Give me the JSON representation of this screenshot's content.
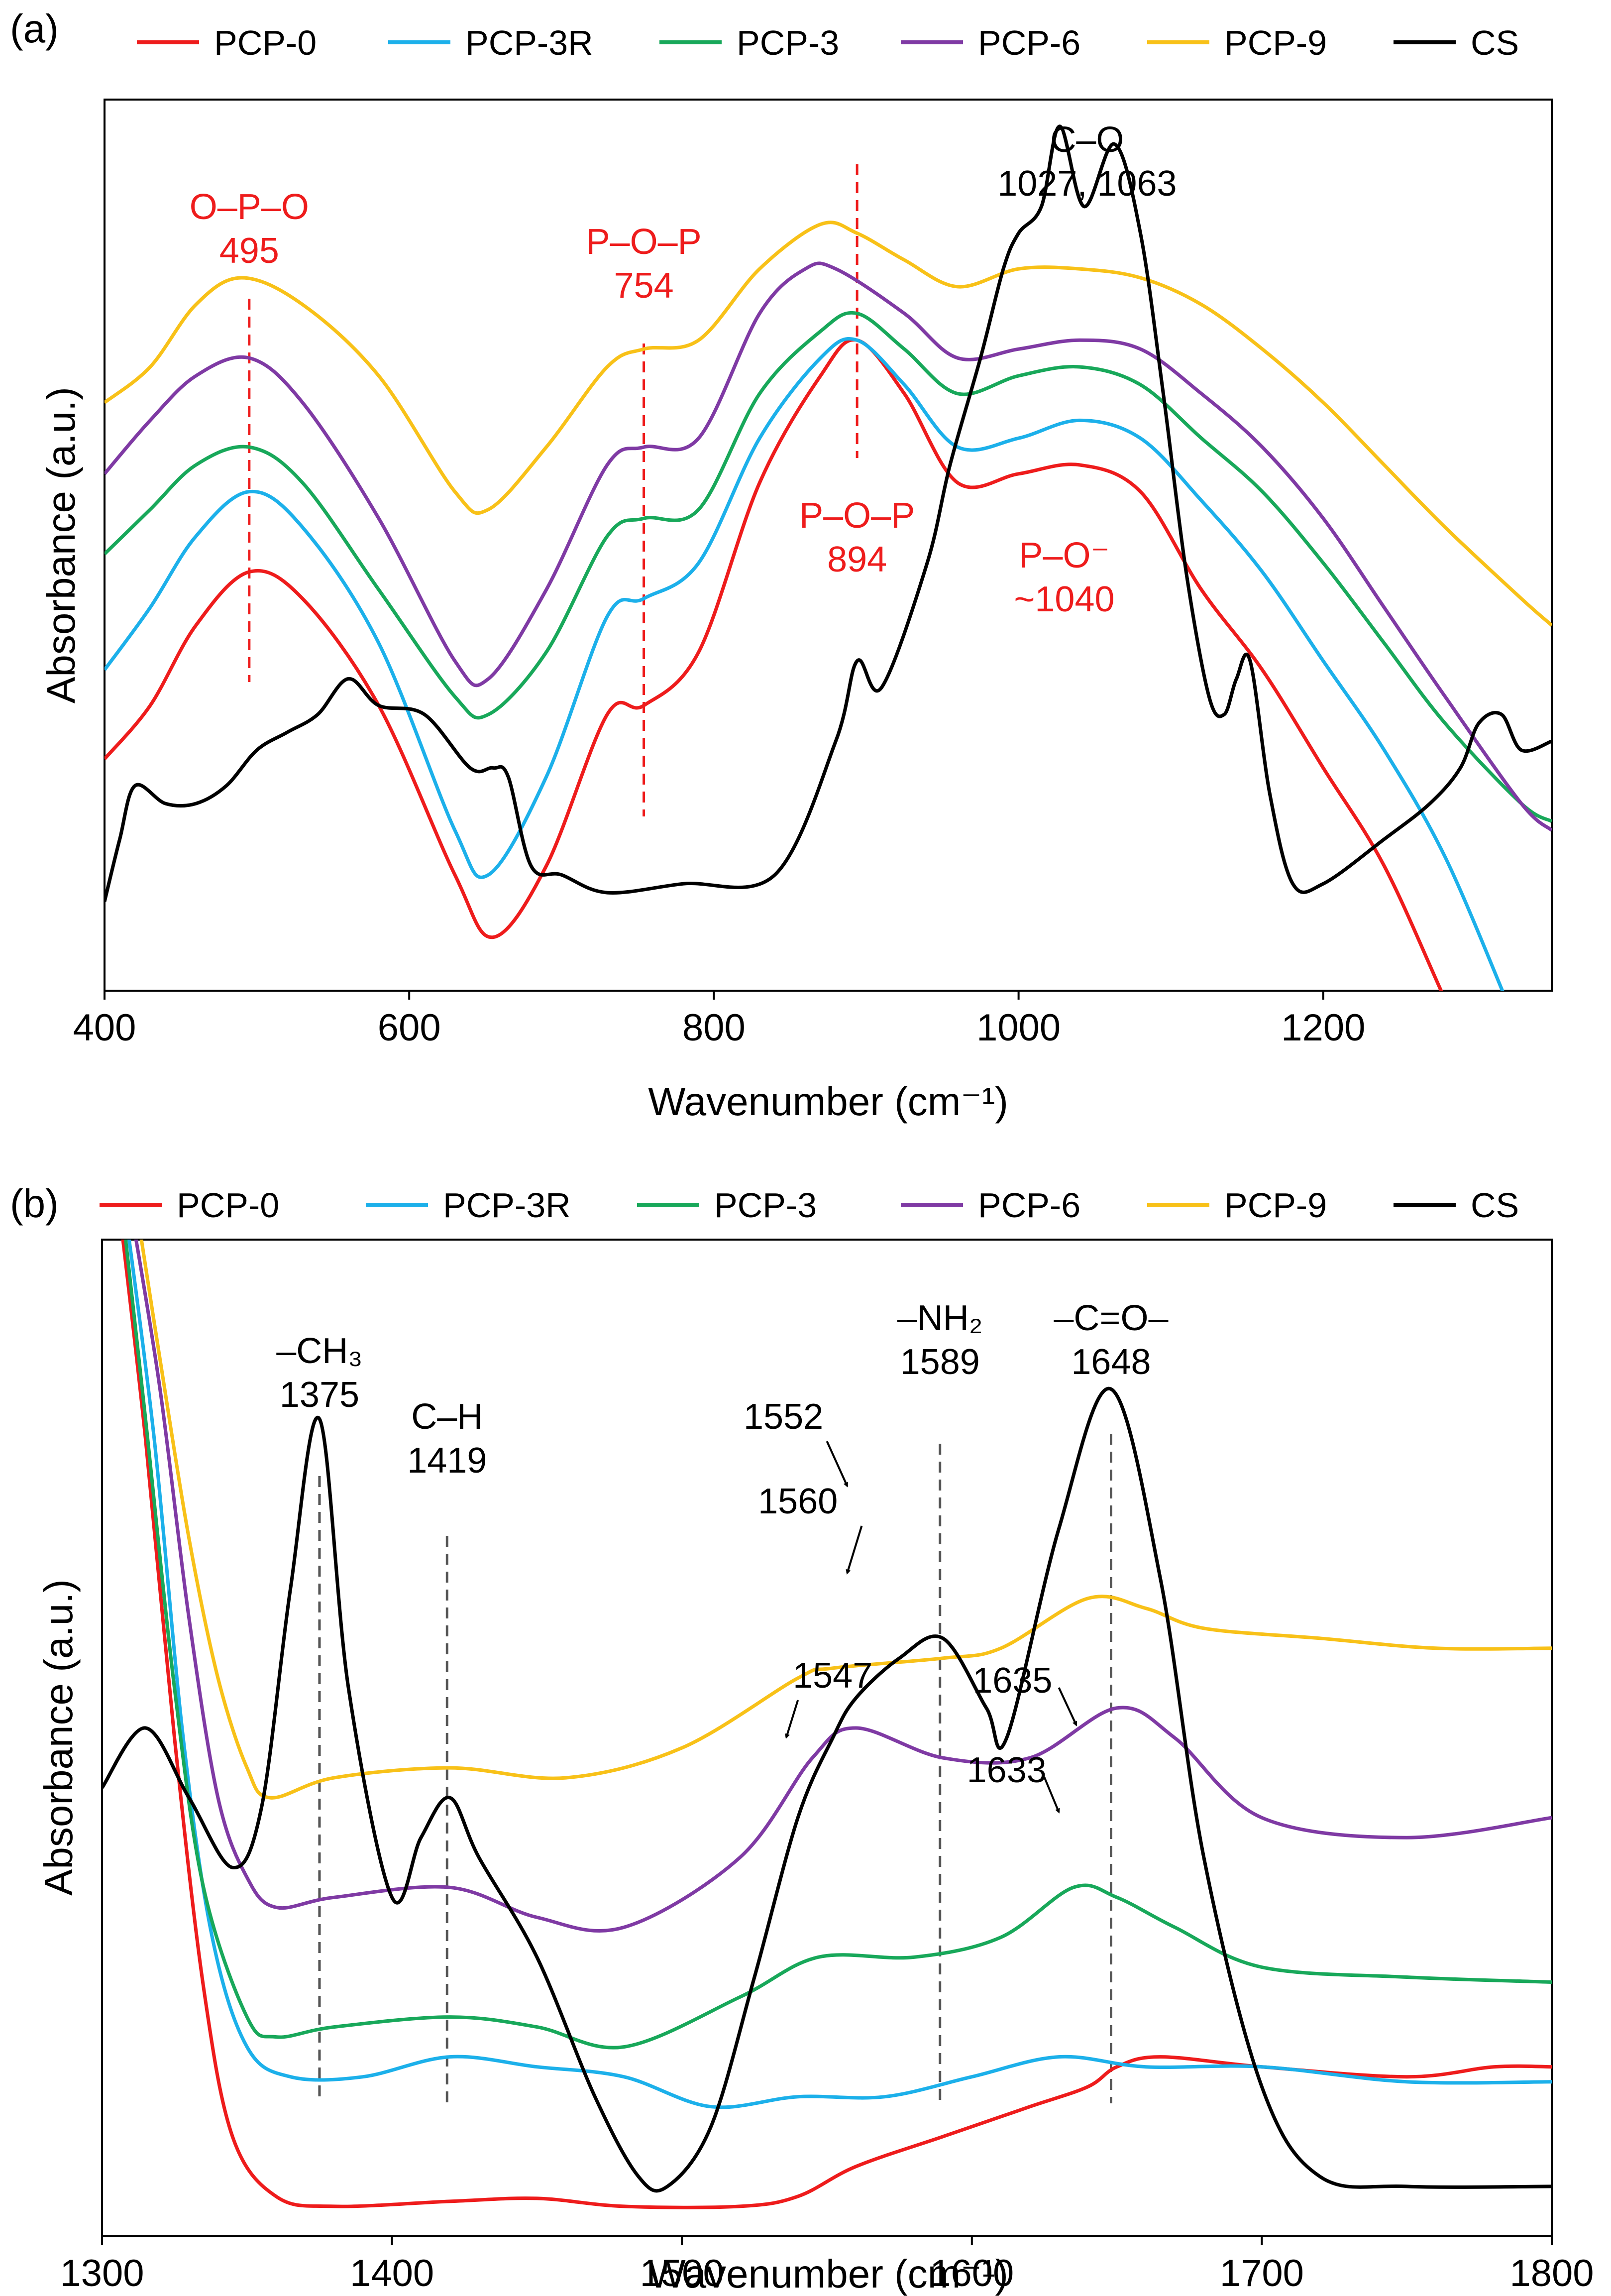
{
  "colors": {
    "PCP-0": "#ee1c1c",
    "PCP-3R": "#1cb0ea",
    "PCP-3": "#18a85a",
    "PCP-6": "#7f3aa4",
    "PCP-9": "#f8c118",
    "CS": "#000000",
    "annotation_red": "#ee1c1c",
    "annotation_black": "#000000"
  },
  "chart_data": [
    {
      "type": "line",
      "panel_label": "(a)",
      "xlabel": "Wavenumber (cm⁻¹)",
      "ylabel": "Absorbance (a.u.)",
      "xlim": [
        400,
        1350
      ],
      "ylim": [
        0,
        100
      ],
      "x_ticks": [
        400,
        600,
        800,
        1000,
        1200
      ],
      "x_tick_labels": [
        "400",
        "600",
        "800",
        "1000",
        "1200"
      ],
      "grid": false,
      "legend_position": "top",
      "legend": [
        "PCP-0",
        "PCP-3R",
        "PCP-3",
        "PCP-6",
        "PCP-9",
        "CS"
      ],
      "series": [
        {
          "name": "PCP-0",
          "x": [
            400,
            430,
            460,
            495,
            530,
            580,
            630,
            655,
            690,
            730,
            754,
            790,
            830,
            870,
            894,
            925,
            960,
            1000,
            1040,
            1080,
            1120,
            1160,
            1200,
            1240,
            1280,
            1310
          ],
          "y": [
            26,
            32,
            41,
            47,
            44,
            32,
            13,
            6,
            14,
            31,
            32,
            38,
            57,
            69,
            73,
            67,
            57,
            58,
            59,
            56,
            45,
            36,
            25,
            14,
            -1,
            -12
          ]
        },
        {
          "name": "PCP-3R",
          "x": [
            400,
            430,
            460,
            495,
            530,
            580,
            630,
            652,
            690,
            730,
            754,
            790,
            830,
            870,
            894,
            925,
            960,
            1000,
            1040,
            1080,
            1120,
            1160,
            1200,
            1240,
            1280,
            1320
          ],
          "y": [
            36,
            43,
            51,
            56,
            52,
            39,
            18,
            13,
            24,
            42,
            44,
            48,
            62,
            71,
            73,
            68,
            61,
            62,
            64,
            62,
            55,
            47,
            37,
            27,
            15,
            -1
          ]
        },
        {
          "name": "PCP-3",
          "x": [
            400,
            430,
            460,
            495,
            530,
            580,
            630,
            652,
            690,
            730,
            754,
            790,
            830,
            870,
            894,
            925,
            960,
            1000,
            1040,
            1080,
            1120,
            1160,
            1200,
            1240,
            1280,
            1330,
            1350
          ],
          "y": [
            49,
            54,
            59,
            61,
            57,
            45,
            33,
            31,
            38,
            51,
            53,
            54,
            67,
            74,
            76,
            72,
            67,
            69,
            70,
            68,
            62,
            56,
            48,
            39,
            30,
            21,
            19
          ]
        },
        {
          "name": "PCP-6",
          "x": [
            400,
            430,
            460,
            495,
            530,
            580,
            630,
            652,
            690,
            730,
            754,
            790,
            830,
            860,
            880,
            925,
            960,
            1000,
            1040,
            1080,
            1120,
            1160,
            1200,
            1240,
            1280,
            1330,
            1350
          ],
          "y": [
            58,
            64,
            69,
            71,
            66,
            53,
            37,
            35,
            45,
            59,
            61,
            62,
            76,
            81,
            81,
            76,
            71,
            72,
            73,
            72,
            67,
            61,
            53,
            43,
            33,
            21,
            18
          ]
        },
        {
          "name": "PCP-9",
          "x": [
            400,
            430,
            460,
            490,
            530,
            580,
            630,
            652,
            690,
            730,
            754,
            790,
            830,
            870,
            894,
            925,
            960,
            1000,
            1040,
            1080,
            1120,
            1160,
            1200,
            1240,
            1280,
            1330,
            1350
          ],
          "y": [
            66,
            70,
            77,
            80,
            77,
            69,
            56,
            54,
            61,
            70,
            72,
            73,
            81,
            86,
            85,
            82,
            79,
            81,
            81,
            80,
            77,
            72,
            66,
            59,
            52,
            44,
            41
          ]
        },
        {
          "name": "CS",
          "x": [
            400,
            410,
            420,
            440,
            460,
            480,
            500,
            520,
            540,
            560,
            580,
            610,
            640,
            655,
            665,
            680,
            700,
            730,
            780,
            840,
            880,
            894,
            910,
            940,
            955,
            975,
            990,
            1000,
            1015,
            1027,
            1043,
            1063,
            1080,
            1095,
            1110,
            1125,
            1135,
            1143,
            1152,
            1165,
            1180,
            1200,
            1240,
            1270,
            1290,
            1302,
            1317,
            1330,
            1350
          ],
          "y": [
            10,
            17,
            23,
            21,
            21,
            23,
            27,
            29,
            31,
            35,
            32,
            31,
            25,
            25,
            24,
            14,
            13,
            11,
            12,
            13,
            28,
            37,
            34,
            48,
            59,
            71,
            81,
            85,
            88,
            97,
            88,
            95,
            85,
            67,
            47,
            33,
            31,
            35,
            37,
            22,
            12,
            12,
            17,
            21,
            25,
            30,
            31,
            27,
            28
          ]
        }
      ],
      "annotations": [
        {
          "text": [
            "O–P–O",
            "495"
          ],
          "x": 495,
          "color": "red"
        },
        {
          "text": [
            "P–O–P",
            "754"
          ],
          "x": 754,
          "color": "red"
        },
        {
          "text": [
            "P–O–P",
            "894"
          ],
          "x": 894,
          "color": "red"
        },
        {
          "text": [
            "P–O⁻",
            "~1040"
          ],
          "x": 1040,
          "color": "red"
        },
        {
          "text": [
            "C–O",
            "1027, 1063"
          ],
          "x": 1045,
          "color": "black"
        }
      ],
      "reference_lines": [
        495,
        754,
        894
      ]
    },
    {
      "type": "line",
      "panel_label": "(b)",
      "xlabel": "Wavenumber (cm⁻¹)",
      "ylabel": "Absorbance (a.u.)",
      "xlim": [
        1300,
        1800
      ],
      "ylim": [
        0,
        100
      ],
      "x_ticks": [
        1300,
        1400,
        1500,
        1600,
        1700,
        1800
      ],
      "x_tick_labels": [
        "1300",
        "1400",
        "1500",
        "1600",
        "1700",
        "1800"
      ],
      "grid": false,
      "legend_position": "top",
      "legend": [
        "PCP-0",
        "PCP-3R",
        "PCP-3",
        "PCP-6",
        "PCP-9",
        "CS"
      ],
      "series": [
        {
          "name": "PCP-0",
          "x": [
            1306,
            1315,
            1325,
            1335,
            1345,
            1360,
            1380,
            1420,
            1450,
            1480,
            1520,
            1540,
            1560,
            1590,
            1620,
            1640,
            1650,
            1665,
            1700,
            1750,
            1780,
            1800
          ],
          "y": [
            103,
            80,
            50,
            25,
            10,
            4,
            3,
            3.5,
            3.8,
            3,
            3,
            4,
            7,
            10,
            13,
            15,
            17,
            18,
            17,
            16,
            17,
            17
          ]
        },
        {
          "name": "PCP-3R",
          "x": [
            1308,
            1318,
            1328,
            1338,
            1350,
            1365,
            1390,
            1420,
            1450,
            1480,
            1510,
            1540,
            1570,
            1600,
            1630,
            1660,
            1700,
            1750,
            1800
          ],
          "y": [
            103,
            80,
            50,
            30,
            19,
            16,
            16,
            18,
            17,
            16,
            13,
            14,
            14,
            16,
            18,
            17,
            17,
            15.5,
            15.5
          ]
        },
        {
          "name": "PCP-3",
          "x": [
            1307,
            1315,
            1325,
            1335,
            1350,
            1360,
            1380,
            1420,
            1450,
            1480,
            1520,
            1547,
            1580,
            1610,
            1635,
            1650,
            1670,
            1700,
            1750,
            1800
          ],
          "y": [
            103,
            82,
            55,
            35,
            22,
            20,
            21,
            22,
            21,
            19,
            24,
            28,
            28,
            30,
            35,
            34,
            31,
            27,
            26,
            25.5
          ]
        },
        {
          "name": "PCP-6",
          "x": [
            1310,
            1320,
            1330,
            1340,
            1350,
            1360,
            1380,
            1420,
            1450,
            1480,
            1520,
            1545,
            1560,
            1590,
            1620,
            1650,
            1670,
            1700,
            1750,
            1800
          ],
          "y": [
            103,
            85,
            62,
            44,
            36,
            33,
            34,
            35,
            32,
            31,
            38,
            48,
            51,
            48,
            48,
            53,
            50,
            42,
            40,
            42
          ]
        },
        {
          "name": "PCP-9",
          "x": [
            1312,
            1320,
            1330,
            1340,
            1350,
            1358,
            1380,
            1420,
            1460,
            1500,
            1540,
            1552,
            1590,
            1610,
            1640,
            1660,
            1680,
            1720,
            1760,
            1800
          ],
          "y": [
            103,
            88,
            70,
            56,
            47,
            44,
            46,
            47,
            46,
            49,
            56,
            57,
            58,
            59,
            64,
            63,
            61,
            60,
            59,
            59
          ]
        },
        {
          "name": "CS",
          "x": [
            1300,
            1315,
            1330,
            1345,
            1355,
            1365,
            1375,
            1385,
            1400,
            1410,
            1420,
            1430,
            1450,
            1470,
            1485,
            1495,
            1510,
            1525,
            1540,
            1552,
            1560,
            1575,
            1590,
            1605,
            1612,
            1630,
            1648,
            1665,
            1680,
            1700,
            1720,
            1750,
            1800
          ],
          "y": [
            45,
            51,
            44,
            37,
            43,
            65,
            82,
            55,
            34,
            40,
            44,
            38,
            28,
            14,
            6,
            5,
            11,
            26,
            42,
            50,
            54,
            58,
            60,
            53,
            50,
            71,
            85,
            66,
            38,
            15,
            6,
            5,
            5
          ]
        }
      ],
      "annotations": [
        {
          "text": [
            "–CH₃",
            "1375"
          ],
          "x": 1375,
          "color": "black"
        },
        {
          "text": [
            "C–H",
            "1419"
          ],
          "x": 1419,
          "color": "black"
        },
        {
          "text": [
            "–NH₂",
            "1589"
          ],
          "x": 1589,
          "color": "black"
        },
        {
          "text": [
            "–C=O–",
            "1648"
          ],
          "x": 1648,
          "color": "black"
        },
        {
          "text": [
            "1552"
          ],
          "x": 1552,
          "color": "black",
          "arrow": true
        },
        {
          "text": [
            "1560"
          ],
          "x": 1560,
          "color": "black",
          "arrow": true
        },
        {
          "text": [
            "1547"
          ],
          "x": 1547,
          "color": "black",
          "arrow": true
        },
        {
          "text": [
            "1635"
          ],
          "x": 1635,
          "color": "black",
          "arrow": true
        },
        {
          "text": [
            "1633"
          ],
          "x": 1633,
          "color": "black",
          "arrow": true
        }
      ],
      "reference_lines": [
        1375,
        1419,
        1589,
        1648
      ]
    }
  ]
}
